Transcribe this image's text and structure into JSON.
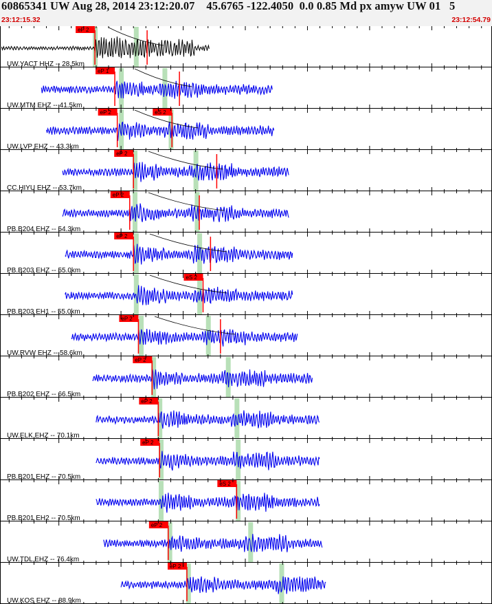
{
  "header": {
    "title": "60865341 UW Aug 28, 2014 23:12:20.07    45.6765 -122.4050  0.0 0.85 Md px amyw UW 01   5",
    "start_time": "23:12:15.32",
    "end_time": "23:12:54.79"
  },
  "colors": {
    "header_bg": "#f2f2f2",
    "time_text": "#d40000",
    "trace_blue": "#0000ee",
    "trace_black": "#000000",
    "pick_red": "#ff0000",
    "predicted_green": "#b8e0b8"
  },
  "traces": [
    {
      "label": "UW.YACT HHZ -- 28.5km",
      "color": "black",
      "picks": [
        {
          "label": "eP 2",
          "time": 22.9
        },
        {
          "label": "",
          "time": 27.1
        }
      ],
      "green": [
        22.9,
        26.2
      ],
      "start": 15.4,
      "end": 32.1
    },
    {
      "label": "UW.MTM EHZ -- 41.5km",
      "color": "blue",
      "picks": [
        {
          "label": "eP 1",
          "time": 24.5
        },
        {
          "label": "",
          "time": 29.7
        }
      ],
      "green": [
        25.0,
        28.5
      ],
      "start": 18.6,
      "end": 37.2
    },
    {
      "label": "UW.LVP EHZ -- 43.3km",
      "color": "blue",
      "picks": [
        {
          "label": "eP 2",
          "time": 24.7
        },
        {
          "label": "eS 2",
          "time": 29.1
        }
      ],
      "green": [
        25.0,
        29.0
      ],
      "start": 19.0,
      "end": 37.3
    },
    {
      "label": "CC.HIYU EHZ -- 53.7km",
      "color": "blue",
      "picks": [
        {
          "label": "eP 2",
          "time": 26.0
        },
        {
          "label": "",
          "time": 32.7
        }
      ],
      "green": [
        26.1,
        31.0
      ],
      "start": 20.3,
      "end": 38.5
    },
    {
      "label": "PB.B204 EHZ -- 54.3km",
      "color": "blue",
      "picks": [
        {
          "label": "eP 2",
          "time": 25.7
        },
        {
          "label": "",
          "time": 31.3
        }
      ],
      "green": [
        26.1,
        31.1
      ],
      "start": 20.3,
      "end": 38.5
    },
    {
      "label": "PB.B203 EHZ -- 55.0km",
      "color": "blue",
      "picks": [
        {
          "label": "eP 2",
          "time": 26.0
        },
        {
          "label": "",
          "time": 32.2
        }
      ],
      "green": [
        26.2,
        31.3
      ],
      "start": 20.5,
      "end": 38.8
    },
    {
      "label": "PB.B203 EH1 -- 55.0km",
      "color": "blue",
      "picks": [
        {
          "label": "eS 2",
          "time": 31.6
        }
      ],
      "green": [
        26.2,
        31.3
      ],
      "start": 20.5,
      "end": 38.8
    },
    {
      "label": "UW.RVW EHZ -- 58.6km",
      "color": "blue",
      "picks": [
        {
          "label": "eP 2",
          "time": 26.4
        },
        {
          "label": "",
          "time": 33.0
        }
      ],
      "green": [
        26.6,
        32.0
      ],
      "start": 21.0,
      "end": 39.2
    },
    {
      "label": "PB.B202 EHZ -- 66.5km",
      "color": "blue",
      "picks": [
        {
          "label": "eP 2",
          "time": 27.5
        }
      ],
      "green": [
        27.6,
        33.6
      ],
      "start": 22.7,
      "end": 40.4
    },
    {
      "label": "UW.ELK EHZ -- 70.1km",
      "color": "blue",
      "picks": [
        {
          "label": "eP 2",
          "time": 28.0
        }
      ],
      "green": [
        28.1,
        34.3
      ],
      "start": 23.0,
      "end": 41.0
    },
    {
      "label": "PB.B201 EHZ -- 70.5km",
      "color": "blue",
      "picks": [
        {
          "label": "eP 2",
          "time": 28.1
        }
      ],
      "green": [
        28.2,
        34.4
      ],
      "start": 23.0,
      "end": 41.0
    },
    {
      "label": "PB.B201 EH2 -- 70.5km",
      "color": "blue",
      "picks": [
        {
          "label": "eS 2",
          "time": 34.3
        }
      ],
      "green": [
        28.2,
        34.4
      ],
      "start": 23.0,
      "end": 41.0
    },
    {
      "label": "UW.TDL EHZ -- 76.4km",
      "color": "blue",
      "picks": [
        {
          "label": "eP 2",
          "time": 28.8
        }
      ],
      "green": [
        28.9,
        35.4
      ],
      "start": 23.6,
      "end": 41.2
    },
    {
      "label": "UW.KOS EHZ -- 88.9km",
      "color": "blue",
      "picks": [
        {
          "label": "eP 2",
          "time": 30.3
        }
      ],
      "green": [
        30.4,
        37.9
      ],
      "start": 25.0,
      "end": 41.5
    }
  ]
}
